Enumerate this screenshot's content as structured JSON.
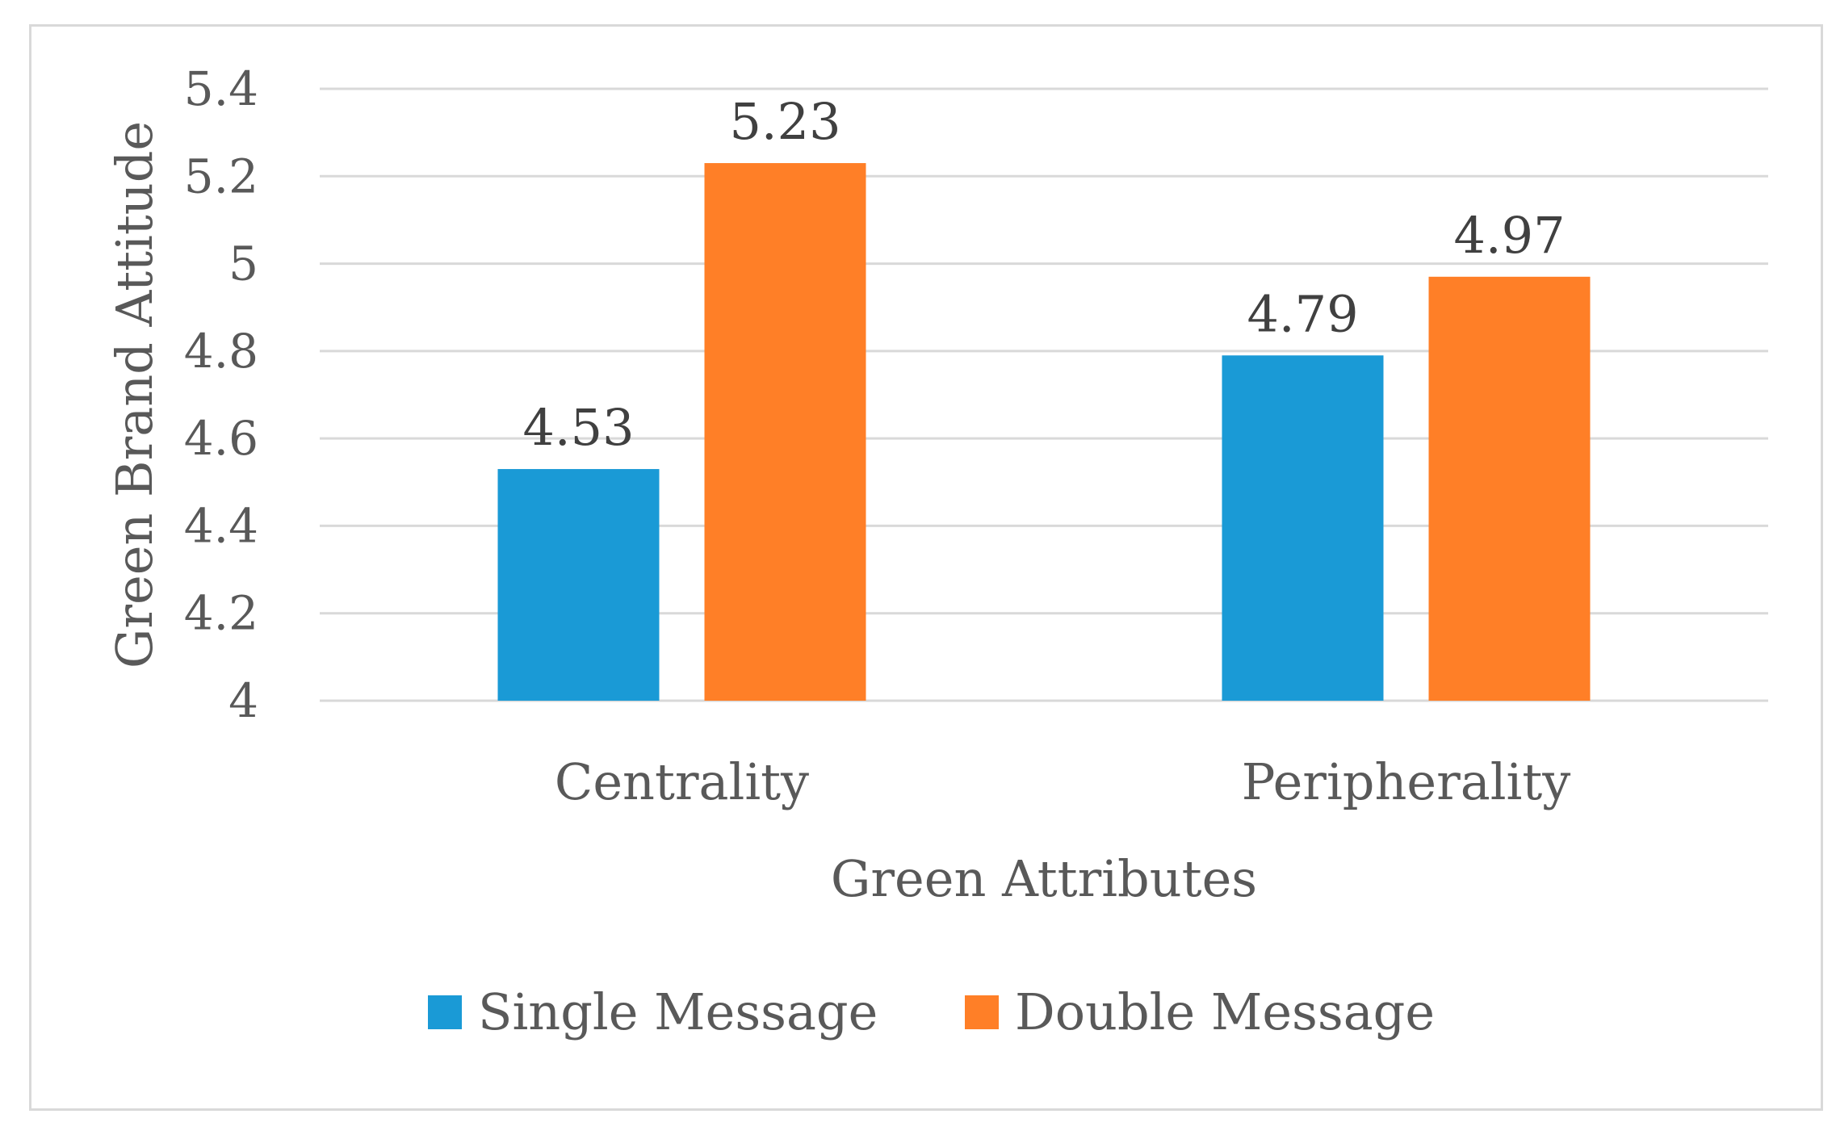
{
  "chart_data": {
    "type": "bar",
    "categories": [
      "Centrality",
      "Peripherality"
    ],
    "series": [
      {
        "name": "Single Message",
        "values": [
          4.53,
          4.79
        ],
        "color": "#1a9ad6"
      },
      {
        "name": "Double Message",
        "values": [
          5.23,
          4.97
        ],
        "color": "#ff7f27"
      }
    ],
    "xlabel": "Green Attributes",
    "ylabel": "Green Brand Attitude",
    "ylim": [
      4,
      5.4
    ],
    "yticks": [
      "4",
      "4.2",
      "4.4",
      "4.6",
      "4.8",
      "5",
      "5.2",
      "5.4"
    ],
    "data_labels": true,
    "grid": true,
    "legend_position": "bottom"
  }
}
